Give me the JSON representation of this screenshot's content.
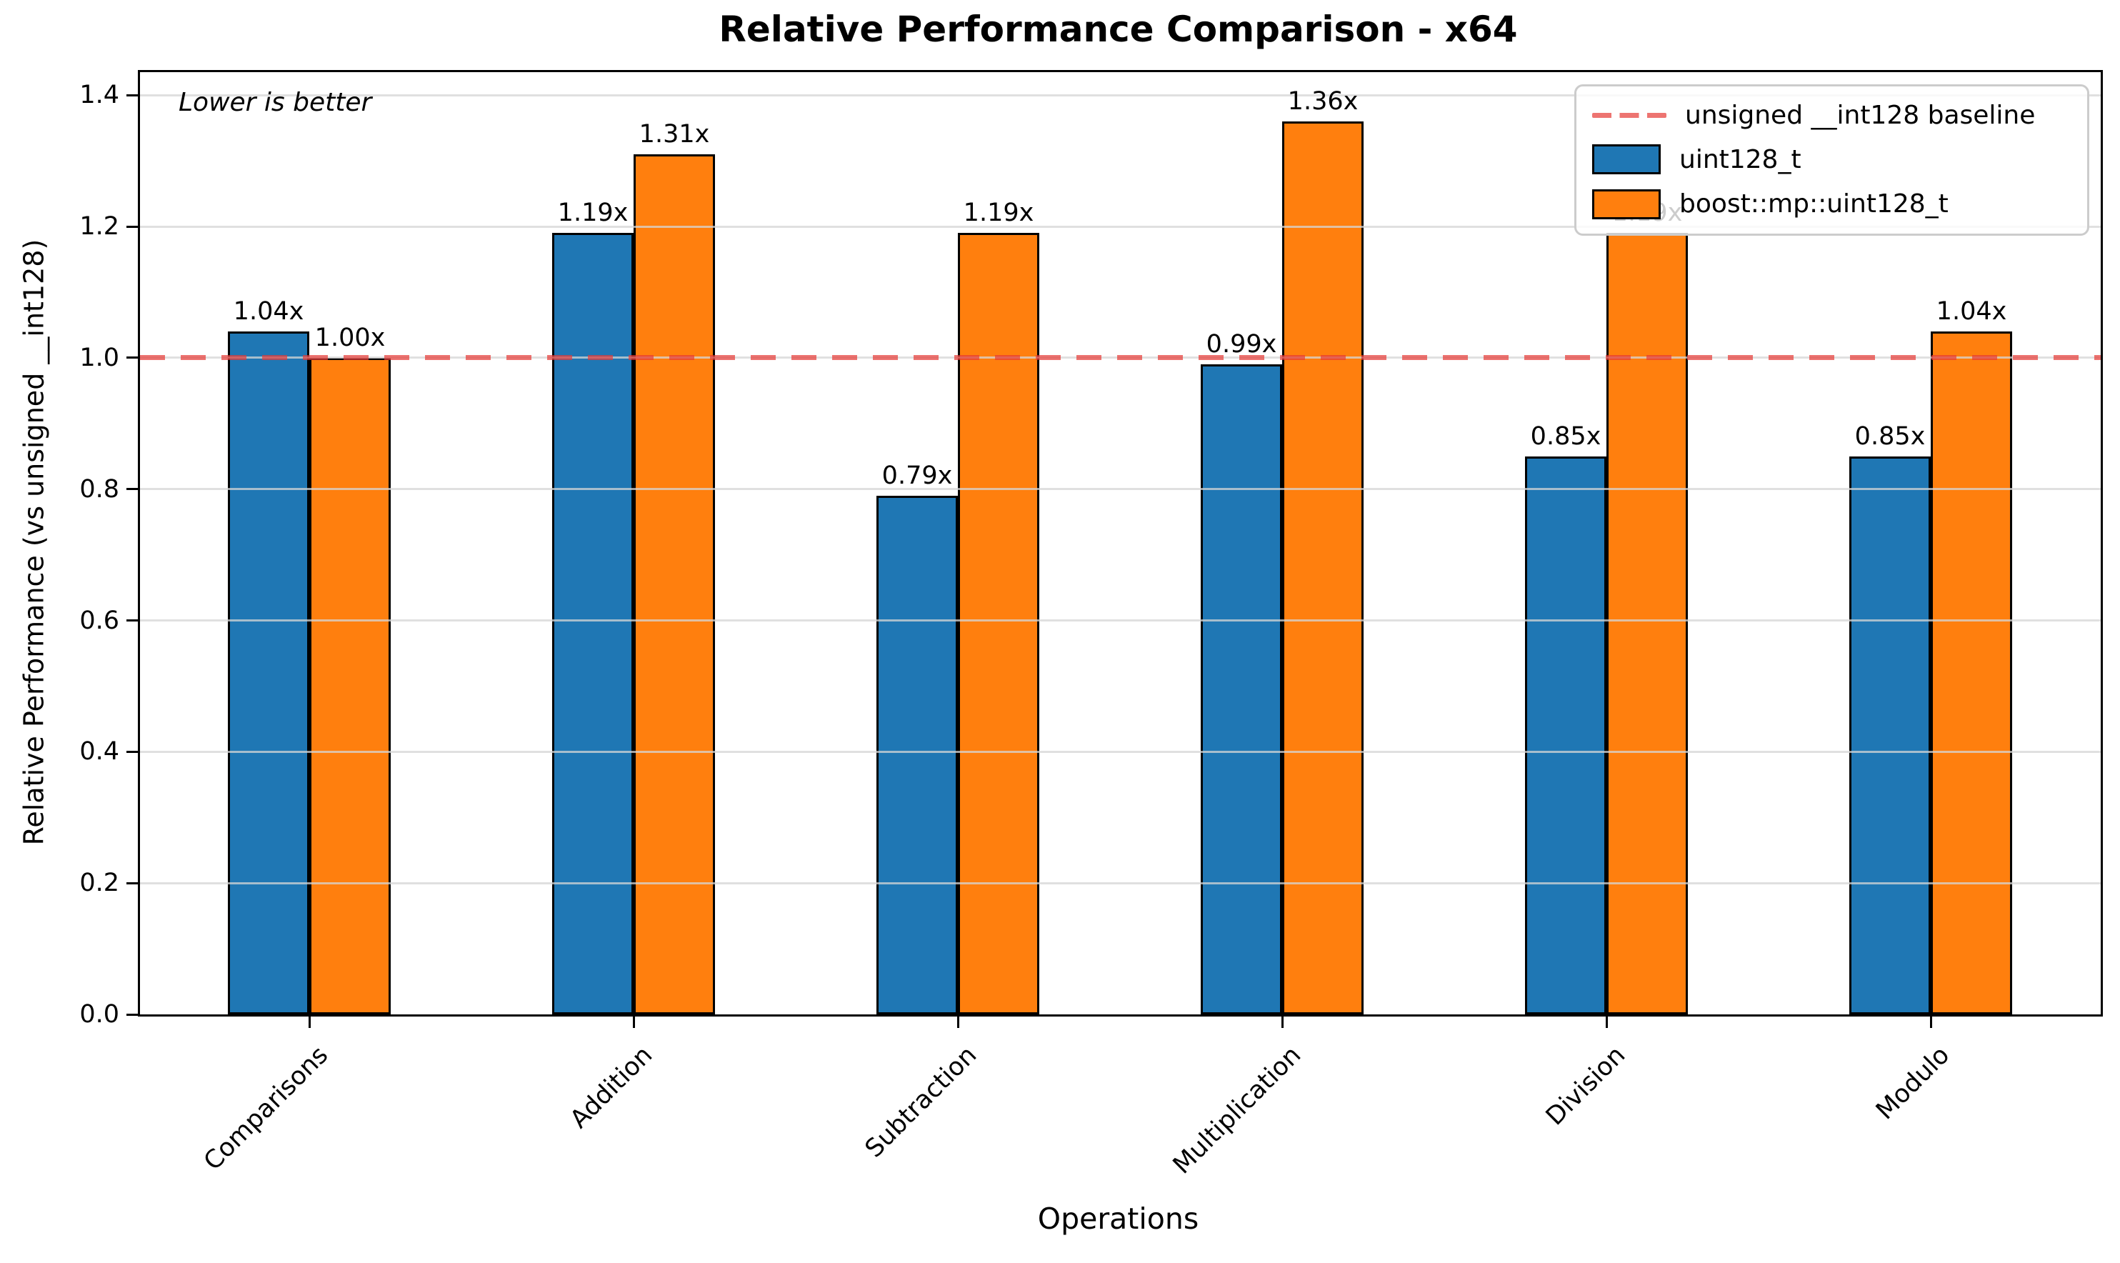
{
  "figure": {
    "title": "Relative Performance Comparison - x64",
    "annotation": "Lower is better",
    "xlabel": "Operations",
    "ylabel": "Relative Performance (vs unsigned __int128)"
  },
  "legend": {
    "baseline_label": "unsigned __int128 baseline",
    "series1_label": "uint128_t",
    "series2_label": "boost::mp::uint128_t"
  },
  "colors": {
    "series1_blue": "#1f77b4",
    "series2_orange": "#ff7f0e",
    "baseline_red": "#e53935",
    "grid_gray": "#d6d6d6",
    "axis_black": "#000000"
  },
  "chart_data": {
    "type": "bar",
    "title": "Relative Performance Comparison - x64",
    "xlabel": "Operations",
    "ylabel": "Relative Performance (vs unsigned __int128)",
    "annotation": "Lower is better",
    "categories": [
      "Comparisons",
      "Addition",
      "Subtraction",
      "Multiplication",
      "Division",
      "Modulo"
    ],
    "series": [
      {
        "name": "uint128_t",
        "color": "#1f77b4",
        "values": [
          1.04,
          1.19,
          0.79,
          0.99,
          0.85,
          0.85
        ],
        "data_labels": [
          "1.04x",
          "1.19x",
          "0.79x",
          "0.99x",
          "0.85x",
          "0.85x"
        ]
      },
      {
        "name": "boost::mp::uint128_t",
        "color": "#ff7f0e",
        "values": [
          1.0,
          1.31,
          1.19,
          1.36,
          1.19,
          1.04
        ],
        "data_labels": [
          "1.00x",
          "1.31x",
          "1.19x",
          "1.36x",
          "1.19x",
          "1.04x"
        ]
      }
    ],
    "baseline": {
      "value": 1.0,
      "label": "unsigned __int128 baseline",
      "color": "#e53935",
      "style": "dashed"
    },
    "ylim": [
      0,
      1.435
    ],
    "yticks": [
      "0.0",
      "0.2",
      "0.4",
      "0.6",
      "0.8",
      "1.0",
      "1.2",
      "1.4"
    ],
    "grid": "horizontal",
    "legend_position": "upper right"
  }
}
